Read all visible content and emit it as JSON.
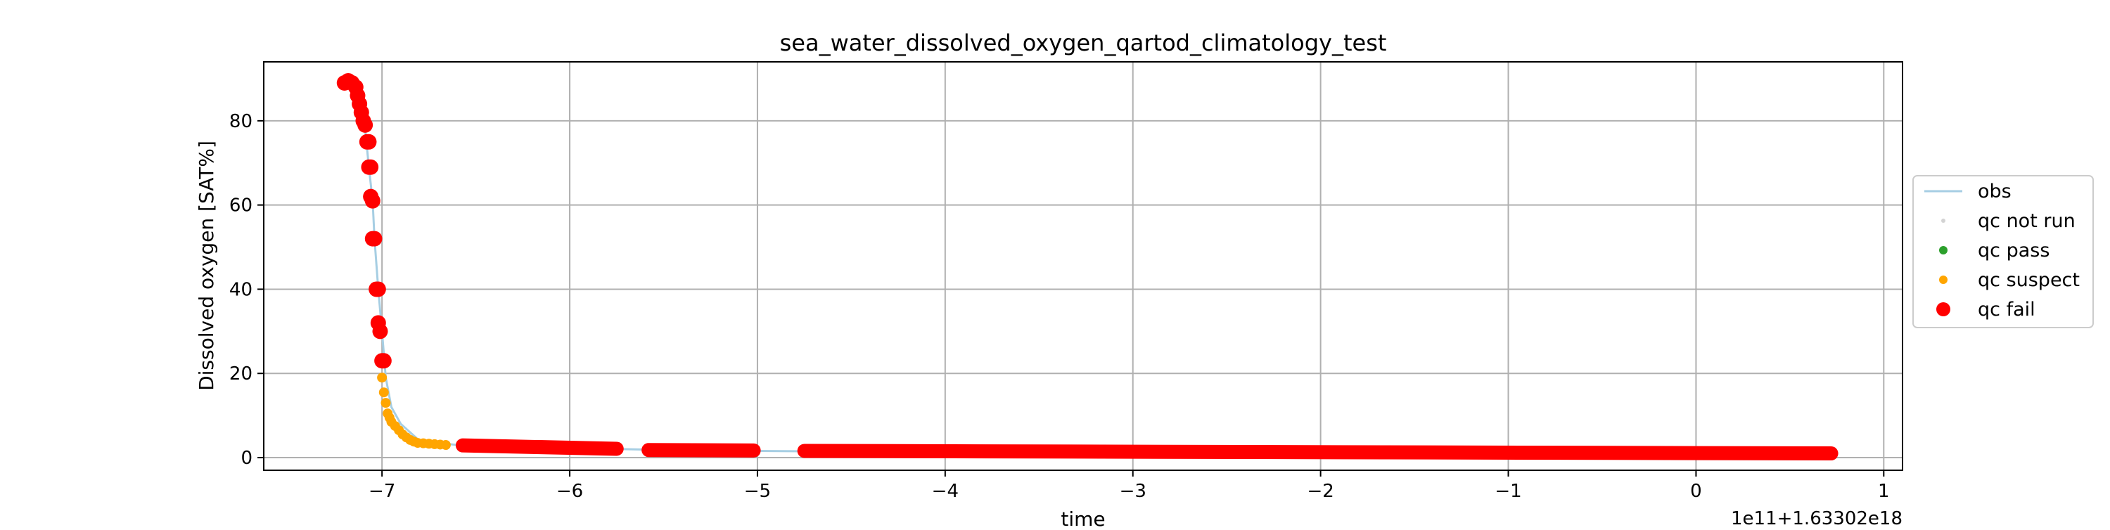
{
  "chart_data": {
    "type": "scatter",
    "title": "sea_water_dissolved_oxygen_qartod_climatology_test",
    "xlabel": "time",
    "ylabel": "Dissolved oxygen [SAT%]",
    "offset_text": "1e11+1.63302e18",
    "xlim": [
      -7.63,
      1.1
    ],
    "ylim": [
      -3,
      94
    ],
    "x_ticks": [
      -7,
      -6,
      -5,
      -4,
      -3,
      -2,
      -1,
      0,
      1
    ],
    "x_tick_labels": [
      "−7",
      "−6",
      "−5",
      "−4",
      "−3",
      "−2",
      "−1",
      "0",
      "1"
    ],
    "y_ticks": [
      0,
      20,
      40,
      60,
      80
    ],
    "y_tick_labels": [
      "0",
      "20",
      "40",
      "60",
      "80"
    ],
    "grid": true,
    "legend_position": "center-right, outside plot",
    "legend": [
      {
        "label": "obs",
        "marker": "line",
        "color": "#a6cee3"
      },
      {
        "label": "qc not run",
        "marker": "dot-small",
        "color": "#d3d3d3"
      },
      {
        "label": "qc pass",
        "marker": "dot",
        "color": "#2ca02c"
      },
      {
        "label": "qc suspect",
        "marker": "dot",
        "color": "#ffa500"
      },
      {
        "label": "qc fail",
        "marker": "dot-large",
        "color": "#ff0000"
      }
    ],
    "obs_line": {
      "color": "#a6cee3",
      "x": [
        -7.2,
        -7.15,
        -7.12,
        -7.09,
        -7.07,
        -7.05,
        -7.04,
        -7.02,
        -7.0,
        -6.98,
        -6.95,
        -6.9,
        -6.85,
        -6.8,
        -6.7,
        -6.6,
        -6.4,
        -6.2,
        -6.0,
        -5.8,
        -5.6,
        -5.0,
        -4.75,
        -4.0,
        -3.0,
        -2.0,
        -1.0,
        0.0,
        0.72
      ],
      "y": [
        89,
        88,
        84,
        78,
        69,
        61,
        52,
        40,
        30,
        19,
        12,
        8,
        6,
        4,
        3.5,
        3,
        2.8,
        2.6,
        2.3,
        2.1,
        1.9,
        1.6,
        1.5,
        1.4,
        1.3,
        1.2,
        1.1,
        1.0,
        1.0
      ]
    },
    "series": [
      {
        "name": "qc fail",
        "color": "#ff0000",
        "points": [
          [
            -7.2,
            89
          ],
          [
            -7.18,
            89.5
          ],
          [
            -7.16,
            89
          ],
          [
            -7.14,
            88
          ],
          [
            -7.13,
            86
          ],
          [
            -7.12,
            84
          ],
          [
            -7.11,
            82
          ],
          [
            -7.1,
            80
          ],
          [
            -7.09,
            79
          ],
          [
            -7.08,
            75
          ],
          [
            -7.07,
            75
          ],
          [
            -7.07,
            69
          ],
          [
            -7.06,
            69
          ],
          [
            -7.06,
            62
          ],
          [
            -7.05,
            61
          ],
          [
            -7.05,
            52
          ],
          [
            -7.04,
            52
          ],
          [
            -7.03,
            40
          ],
          [
            -7.02,
            40
          ],
          [
            -7.02,
            32
          ],
          [
            -7.01,
            30
          ],
          [
            -7.0,
            23
          ],
          [
            -6.99,
            23
          ]
        ],
        "segments": [
          {
            "x_start": -6.57,
            "x_end": -5.75,
            "y_start": 2.9,
            "y_end": 2.1
          },
          {
            "x_start": -5.58,
            "x_end": -5.02,
            "y_start": 1.8,
            "y_end": 1.7
          },
          {
            "x_start": -4.75,
            "x_end": 0.72,
            "y_start": 1.6,
            "y_end": 1.0
          }
        ]
      },
      {
        "name": "qc suspect",
        "color": "#ffa500",
        "points": [
          [
            -7.0,
            19
          ],
          [
            -6.99,
            15.5
          ],
          [
            -6.98,
            13
          ],
          [
            -6.97,
            10.5
          ],
          [
            -6.96,
            9.5
          ],
          [
            -6.95,
            8.5
          ],
          [
            -6.93,
            7.5
          ],
          [
            -6.91,
            6.5
          ],
          [
            -6.89,
            5.5
          ],
          [
            -6.87,
            4.8
          ],
          [
            -6.85,
            4.2
          ],
          [
            -6.83,
            3.8
          ],
          [
            -6.81,
            3.5
          ],
          [
            -6.78,
            3.4
          ],
          [
            -6.75,
            3.3
          ],
          [
            -6.72,
            3.2
          ],
          [
            -6.69,
            3.1
          ],
          [
            -6.66,
            3.0
          ]
        ]
      }
    ]
  }
}
